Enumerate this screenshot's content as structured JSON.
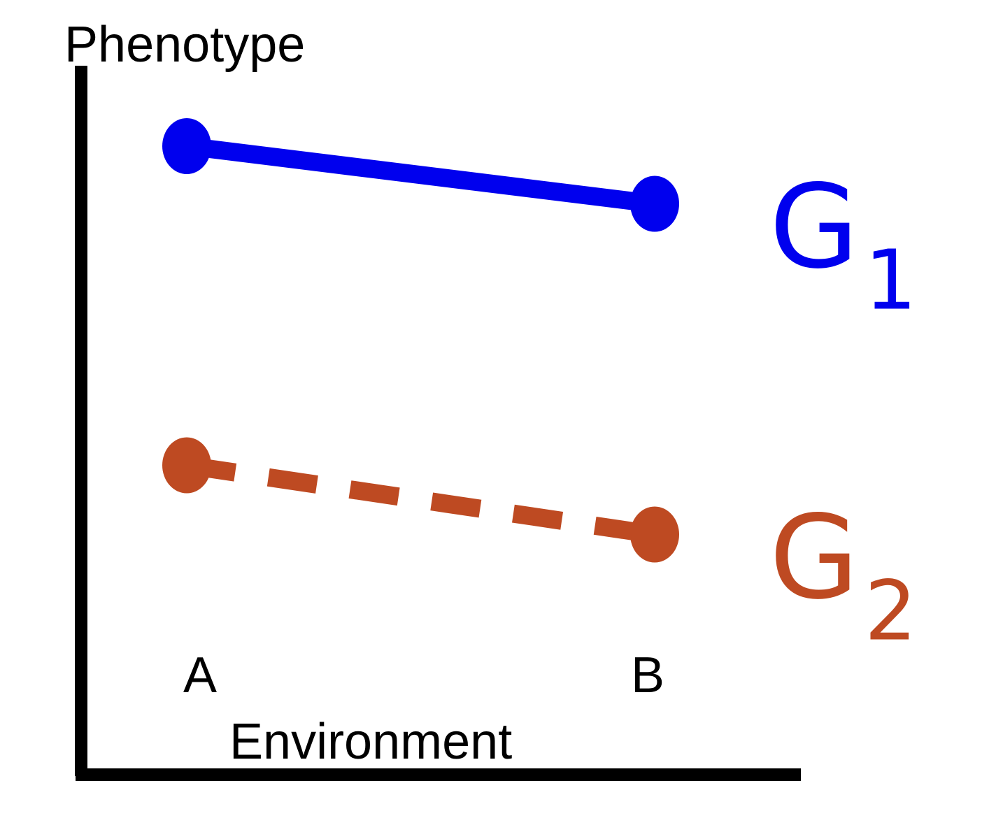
{
  "chart_data": {
    "type": "line",
    "title": "",
    "xlabel": "Environment",
    "ylabel": "Phenotype",
    "categories": [
      "A",
      "B"
    ],
    "ylim": [
      0,
      10
    ],
    "grid": false,
    "legend": "right, at line ends",
    "series": [
      {
        "name": "G",
        "subscript": "1",
        "values": [
          8.1,
          7.35
        ],
        "color": "#0000ee",
        "line_style": "solid"
      },
      {
        "name": "G",
        "subscript": "2",
        "values": [
          3.95,
          3.05
        ],
        "color": "#be4a22",
        "line_style": "dashed"
      }
    ]
  }
}
